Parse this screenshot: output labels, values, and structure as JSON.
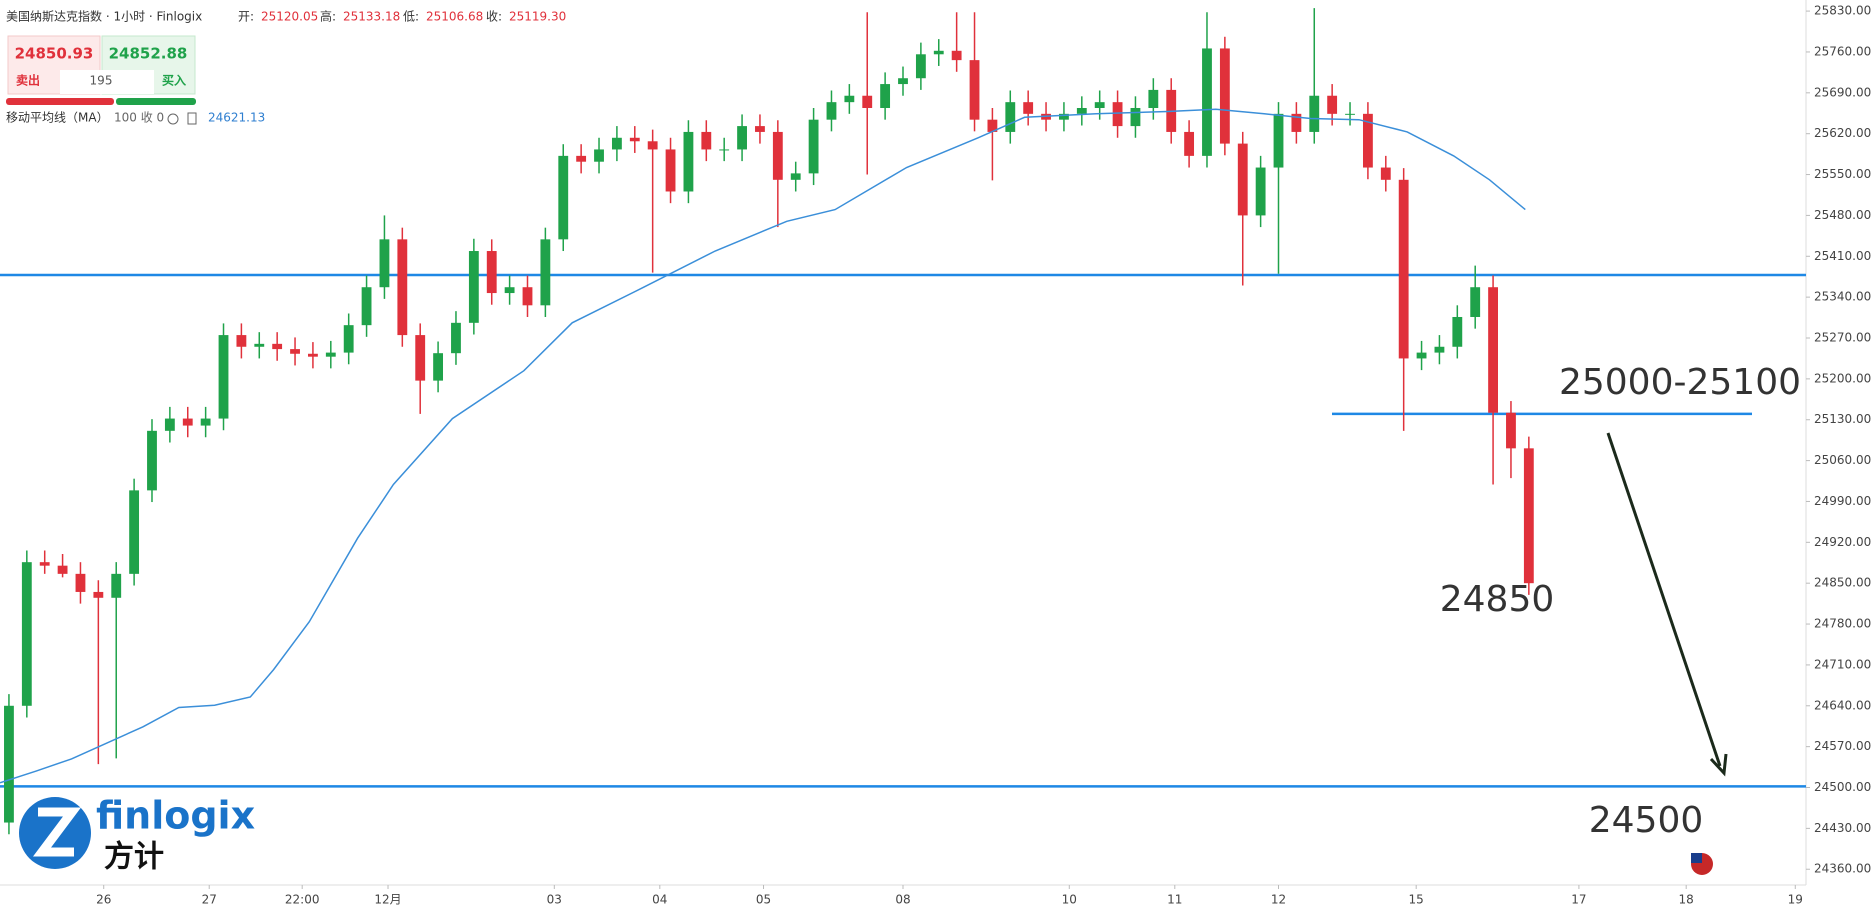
{
  "header": {
    "title": "美国纳斯达克指数 · 1小时 · Finlogix",
    "open_label": "开:",
    "open": "25120.05",
    "high_label": "高:",
    "high": "25133.18",
    "low_label": "低:",
    "low": "25106.68",
    "close_label": "收:",
    "close": "25119.30"
  },
  "quote": {
    "sell": "24850.93",
    "sell_label": "卖出",
    "spread": "195",
    "buy": "24852.88",
    "buy_label": "买入"
  },
  "indicator": {
    "name": "移动平均线（MA）",
    "params": "100 收 0",
    "value": "24621.13"
  },
  "logo": {
    "text": "finlogix",
    "subtext": "方计"
  },
  "chart_data": {
    "type": "candlestick",
    "x": [
      0.5,
      1.5,
      2.5,
      3.5,
      4.5,
      5.5,
      6.5,
      7.5,
      8.5,
      9.5,
      10.5,
      11.5,
      12.5,
      13.5,
      14.5,
      15.5,
      16.5,
      17.5,
      18.5,
      19.5,
      20.5,
      21.5,
      22.5,
      23.5,
      24.5,
      25.5,
      26.5,
      27.5,
      28.5,
      29.5,
      30.5,
      31.5,
      32.5,
      33.5,
      34.5,
      35.5,
      36.5,
      37.5,
      38.5,
      39.5,
      40.5,
      41.5,
      42.5,
      43.5,
      44.5,
      45.5,
      46.5,
      47.5,
      48.5,
      49.5,
      50.5,
      51.5,
      52.5,
      53.5,
      54.5,
      55.5,
      56.5,
      57.5,
      58.5,
      59.5,
      60.5,
      61.5,
      62.5,
      63.5,
      64.5,
      65.5,
      66.5,
      67.5,
      68.5,
      69.5,
      70.5,
      71.5,
      72.5,
      73.5,
      74.5,
      75.5,
      76.5,
      77.5,
      78.5,
      79.5,
      80.5,
      81.5,
      82.5,
      83.5,
      84.5,
      85.5
    ],
    "open": [
      24440,
      24640,
      24886,
      24880,
      24866,
      24835,
      24825,
      24866,
      25009,
      25111,
      25132,
      25120,
      25132,
      25275,
      25255,
      25260,
      25251,
      25243,
      25238,
      25245,
      25292,
      25357,
      25439,
      25275,
      25197,
      25244,
      25296,
      25419,
      25347,
      25357,
      25326,
      25439,
      25582,
      25572,
      25593,
      25613,
      25607,
      25593,
      25521,
      25623,
      25593,
      25593,
      25633,
      25623,
      25541,
      25552,
      25644,
      25674,
      25685,
      25664,
      25705,
      25715,
      25756,
      25762,
      25746,
      25644,
      25623,
      25674,
      25654,
      25644,
      25654,
      25664,
      25674,
      25633,
      25664,
      25695,
      25623,
      25582,
      25766,
      25603,
      25480,
      25562,
      25654,
      25623,
      25685,
      25654,
      25654,
      25562,
      25541,
      25235,
      25245,
      25255,
      25306,
      25357,
      25142,
      25081
    ],
    "high": [
      24660,
      24906,
      24906,
      24900,
      24886,
      24855,
      24886,
      25029,
      25131,
      25152,
      25152,
      25152,
      25295,
      25295,
      25280,
      25280,
      25271,
      25263,
      25265,
      25312,
      25377,
      25480,
      25459,
      25295,
      25264,
      25316,
      25440,
      25439,
      25377,
      25377,
      25459,
      25602,
      25602,
      25613,
      25633,
      25633,
      25627,
      25613,
      25643,
      25643,
      25613,
      25653,
      25653,
      25643,
      25572,
      25664,
      25694,
      25705,
      25828,
      25725,
      25735,
      25776,
      25782,
      25828,
      25828,
      25664,
      25694,
      25694,
      25674,
      25674,
      25684,
      25694,
      25694,
      25684,
      25715,
      25715,
      25643,
      25828,
      25786,
      25623,
      25582,
      25674,
      25674,
      25835,
      25705,
      25674,
      25674,
      25582,
      25561,
      25265,
      25275,
      25326,
      25394,
      25377,
      25162,
      25101
    ],
    "low": [
      24420,
      24620,
      24866,
      24860,
      24815,
      24540,
      24550,
      24846,
      24989,
      25091,
      25100,
      25100,
      25112,
      25235,
      25235,
      25231,
      25223,
      25218,
      25218,
      25225,
      25272,
      25337,
      25255,
      25140,
      25177,
      25224,
      25276,
      25327,
      25327,
      25306,
      25306,
      25419,
      25552,
      25552,
      25573,
      25587,
      25382,
      25501,
      25501,
      25573,
      25573,
      25573,
      25603,
      25460,
      25521,
      25532,
      25624,
      25654,
      25550,
      25644,
      25685,
      25695,
      25736,
      25726,
      25624,
      25540,
      25603,
      25634,
      25624,
      25624,
      25634,
      25644,
      25613,
      25613,
      25644,
      25603,
      25562,
      25562,
      25583,
      25360,
      25460,
      25380,
      25603,
      25603,
      25634,
      25634,
      25542,
      25521,
      25111,
      25215,
      25225,
      25235,
      25286,
      25019,
      25030,
      24830
    ],
    "close": [
      24640,
      24886,
      24880,
      24866,
      24835,
      24825,
      24866,
      25009,
      25111,
      25132,
      25120,
      25132,
      25275,
      25255,
      25260,
      25251,
      25243,
      25238,
      25245,
      25292,
      25357,
      25439,
      25275,
      25197,
      25244,
      25296,
      25419,
      25347,
      25357,
      25326,
      25439,
      25582,
      25572,
      25593,
      25613,
      25607,
      25593,
      25521,
      25623,
      25593,
      25593,
      25633,
      25623,
      25541,
      25552,
      25644,
      25674,
      25685,
      25664,
      25705,
      25715,
      25756,
      25762,
      25746,
      25644,
      25623,
      25674,
      25654,
      25644,
      25654,
      25664,
      25674,
      25633,
      25664,
      25695,
      25623,
      25582,
      25766,
      25603,
      25480,
      25562,
      25654,
      25623,
      25685,
      25654,
      25654,
      25562,
      25541,
      25235,
      25245,
      25255,
      25306,
      25357,
      25142,
      25081,
      24850
    ],
    "up_color": "#1fa24a",
    "down_color": "#e0313b",
    "ma": {
      "x": [
        0,
        2,
        4,
        8,
        10,
        12,
        14,
        15.3,
        17.3,
        20,
        22,
        25.3,
        29.3,
        32,
        36,
        40,
        44,
        46.7,
        50.7,
        54.7,
        57.3,
        61.3,
        65.3,
        68,
        70.7,
        73.3,
        76,
        78.7,
        81.3,
        83.3,
        85.3
      ],
      "values": [
        24508,
        24528,
        24549,
        24604,
        24637,
        24641,
        24655,
        24702,
        24784,
        24927,
        25019,
        25132,
        25214,
        25296,
        25357,
        25419,
        25470,
        25490,
        25562,
        25613,
        25648,
        25654,
        25658,
        25662,
        25654,
        25646,
        25644,
        25623,
        25582,
        25541,
        25490
      ],
      "color": "#3b8fd9"
    },
    "levels": [
      25378,
      25140,
      24502
    ],
    "level_color": "#1e88e5",
    "annotations": [
      "25000-25100",
      "24850",
      "24500"
    ],
    "xlim": [
      0,
      101
    ],
    "ylim": [
      24333,
      25849
    ],
    "xticks": [
      {
        "value": 5.8,
        "label": "26"
      },
      {
        "value": 11.7,
        "label": "27"
      },
      {
        "value": 16.9,
        "label": "22:00"
      },
      {
        "value": 21.7,
        "label": "12月"
      },
      {
        "value": 31,
        "label": "03"
      },
      {
        "value": 36.9,
        "label": "04"
      },
      {
        "value": 42.7,
        "label": "05"
      },
      {
        "value": 50.5,
        "label": "08"
      },
      {
        "value": 59.8,
        "label": "10"
      },
      {
        "value": 65.7,
        "label": "11"
      },
      {
        "value": 71.5,
        "label": "12"
      },
      {
        "value": 79.2,
        "label": "15"
      },
      {
        "value": 88.3,
        "label": "17"
      },
      {
        "value": 94.3,
        "label": "18"
      },
      {
        "value": 100.4,
        "label": "19"
      }
    ],
    "yticks": [
      {
        "value": 24360,
        "label": "24360.00"
      },
      {
        "value": 24430,
        "label": "24430.00"
      },
      {
        "value": 24500,
        "label": "24500.00"
      },
      {
        "value": 24570,
        "label": "24570.00"
      },
      {
        "value": 24640,
        "label": "24640.00"
      },
      {
        "value": 24710,
        "label": "24710.00"
      },
      {
        "value": 24780,
        "label": "24780.00"
      },
      {
        "value": 24850,
        "label": "24850.00"
      },
      {
        "value": 24920,
        "label": "24920.00"
      },
      {
        "value": 24990,
        "label": "24990.00"
      },
      {
        "value": 25060,
        "label": "25060.00"
      },
      {
        "value": 25130,
        "label": "25130.00"
      },
      {
        "value": 25200,
        "label": "25200.00"
      },
      {
        "value": 25270,
        "label": "25270.00"
      },
      {
        "value": 25340,
        "label": "25340.00"
      },
      {
        "value": 25410,
        "label": "25410.00"
      },
      {
        "value": 25480,
        "label": "25480.00"
      },
      {
        "value": 25550,
        "label": "25550.00"
      },
      {
        "value": 25620,
        "label": "25620.00"
      },
      {
        "value": 25690,
        "label": "25690.00"
      },
      {
        "value": 25760,
        "label": "25760.00"
      },
      {
        "value": 25830,
        "label": "25830.00"
      }
    ]
  }
}
